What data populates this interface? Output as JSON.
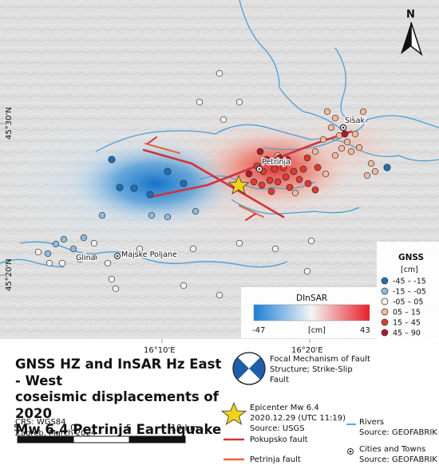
{
  "title": {
    "lines": [
      "GNSS HZ and InSAR Hz East - West",
      "coseismic displacements of 2020",
      "Mw 6.4 Petrinja Earthquake"
    ]
  },
  "crs": {
    "line1": "CRS: WGS84",
    "line2": "Zagreb, March 2024"
  },
  "scale_bar": {
    "labels": [
      "5",
      "0",
      "5",
      "10 km"
    ]
  },
  "coordinates": {
    "lat_ticks": [
      "45°30'N",
      "45°20'N"
    ],
    "lon_ticks": [
      "16°10'E",
      "16°20'E"
    ]
  },
  "places": {
    "petrinja": "Petrinja",
    "sisak": "Sisak",
    "glina": "Glina",
    "majske_poljane": "Majske Poljane"
  },
  "north_arrow": {
    "label": "N"
  },
  "dinsar_legend": {
    "title": "DInSAR",
    "min": "-47",
    "unit": "[cm]",
    "max": "43",
    "color_low": "#1a7fd4",
    "color_high": "#e8202a"
  },
  "gnss_legend": {
    "title": "GNSS",
    "unit": "[cm]",
    "classes": [
      {
        "label": "-45 – -15",
        "color": "#1f6fb4"
      },
      {
        "label": "-15 – -05",
        "color": "#8ebbe0"
      },
      {
        "label": "-05 – 05",
        "color": "#f1f1f1"
      },
      {
        "label": "05 – 15",
        "color": "#f4b99c"
      },
      {
        "label": "15 – 45",
        "color": "#e03a2e"
      },
      {
        "label": "45 – 90",
        "color": "#b2182b"
      }
    ]
  },
  "focal_legend": {
    "lines": [
      "Focal Mechanism of Fault",
      "Structure; Strike-Slip",
      "Fault"
    ]
  },
  "epicenter_legend": {
    "lines": [
      "Epicenter Mw 6.4",
      "2020.12.29 (UTC 11:19)",
      "Source: USGS"
    ],
    "color": "#f2d21b"
  },
  "rivers_legend": {
    "label": "Rivers",
    "source": "Source: GEOFABRIK",
    "color": "#4a9fd8"
  },
  "cities_legend": {
    "label": "Cities and Towns",
    "source": "Source: GEOFABRIK"
  },
  "faults": [
    {
      "label": "Pokupsko fault",
      "color": "#d0343a"
    },
    {
      "label": "Petrinja fault",
      "color": "#e8643a"
    }
  ]
}
